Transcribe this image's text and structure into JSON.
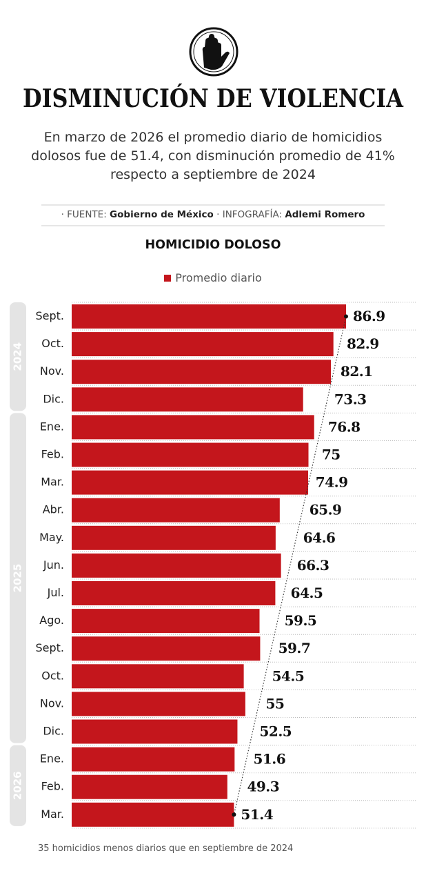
{
  "header": {
    "title": "DISMINUCIÓN DE VIOLENCIA",
    "subtitle": "En marzo de 2026 el promedio diario de homicidios dolosos fue de 51.4, con disminución promedio de 41% respecto a septiembre de 2024",
    "source_label": "· FUENTE:",
    "source": "Gobierno de México",
    "credit_label": "· INFOGRAFÍA:",
    "credit": "Adlemi Romero"
  },
  "chart_data": {
    "type": "hbar",
    "title": "HOMICIDIO DOLOSO",
    "categories": [
      "Sept.",
      "Oct.",
      "Nov.",
      "Dic.",
      "Ene.",
      "Feb.",
      "Mar.",
      "Abr.",
      "May.",
      "Jun.",
      "Jul.",
      "Ago.",
      "Sept.",
      "Oct.",
      "Nov.",
      "Dic.",
      "Ene.",
      "Feb.",
      "Mar."
    ],
    "groups": [
      {
        "label": "2024",
        "first": 0,
        "last": 3
      },
      {
        "label": "2025",
        "first": 4,
        "last": 15
      },
      {
        "label": "2026",
        "first": 16,
        "last": 18
      }
    ],
    "series": [
      {
        "name": "Promedio diario",
        "color": "#c4161c",
        "values": [
          86.9,
          82.9,
          82.1,
          73.3,
          76.8,
          75,
          74.9,
          65.9,
          64.6,
          66.3,
          64.5,
          59.5,
          59.7,
          54.5,
          55,
          52.5,
          51.6,
          49.3,
          51.4
        ]
      }
    ],
    "trend_line": true,
    "note": "35 homicidios menos diarios que en septiembre de 2024"
  }
}
